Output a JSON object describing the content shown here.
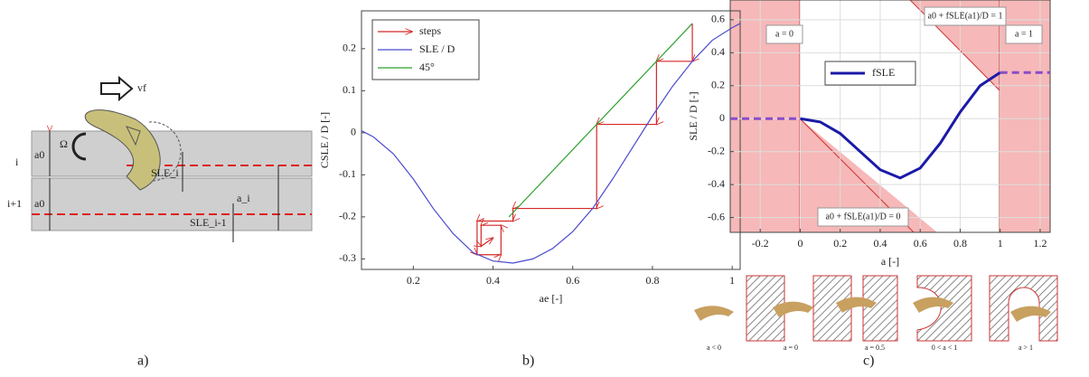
{
  "captions": [
    "a)",
    "b)",
    "c)"
  ],
  "panel_a": {
    "labels": [
      "vf",
      "Ω",
      "i",
      "a0",
      "i+1",
      "a0",
      "SLE_i",
      "SLE_i-1",
      "a_i"
    ]
  },
  "chart_data": [
    {
      "type": "line",
      "xlabel": "ae [-]",
      "ylabel": "CSLE / D [-]",
      "xlim": [
        0.07,
        1.02
      ],
      "ylim": [
        -0.325,
        0.29
      ],
      "xticks": [
        0.2,
        0.4,
        0.6,
        0.8,
        1
      ],
      "yticks": [
        -0.3,
        -0.2,
        -0.1,
        0,
        0.1,
        0.2
      ],
      "grid": false,
      "legend": "upper left",
      "series": [
        {
          "name": "steps",
          "color": "#d62728",
          "arrows": true,
          "x": [
            0.9,
            0.9,
            0.81,
            0.81,
            0.66,
            0.66,
            0.45,
            0.45,
            0.36,
            0.36,
            0.42,
            0.42,
            0.37,
            0.37,
            0.4
          ],
          "values": [
            0.26,
            0.17,
            0.17,
            0.02,
            0.02,
            -0.18,
            -0.18,
            -0.21,
            -0.21,
            -0.29,
            -0.29,
            -0.22,
            -0.22,
            -0.27,
            -0.25
          ]
        },
        {
          "name": "SLE / D",
          "color": "#4a4ad0",
          "x": [
            0.07,
            0.1,
            0.15,
            0.2,
            0.25,
            0.3,
            0.35,
            0.4,
            0.45,
            0.5,
            0.55,
            0.6,
            0.65,
            0.7,
            0.75,
            0.8,
            0.85,
            0.9,
            0.95,
            1.0,
            1.02
          ],
          "values": [
            0.005,
            -0.01,
            -0.05,
            -0.11,
            -0.18,
            -0.24,
            -0.285,
            -0.305,
            -0.31,
            -0.3,
            -0.275,
            -0.235,
            -0.18,
            -0.11,
            -0.035,
            0.04,
            0.11,
            0.17,
            0.22,
            0.25,
            0.26
          ]
        },
        {
          "name": "45°",
          "color": "#2ca02c",
          "x": [
            0.44,
            0.9
          ],
          "values": [
            -0.2,
            0.26
          ]
        }
      ]
    },
    {
      "type": "line",
      "xlabel": "a [-]",
      "ylabel": "SLE / D [-]",
      "xlim": [
        -0.35,
        1.25
      ],
      "ylim": [
        -0.69,
        0.72
      ],
      "xticks": [
        -0.2,
        0,
        0.2,
        0.4,
        0.6,
        0.8,
        1,
        1.2
      ],
      "yticks": [
        -0.6,
        -0.4,
        -0.2,
        0,
        0.2,
        0.4,
        0.6
      ],
      "grid": true,
      "legend": "upper left",
      "annotations": [
        "a = 0",
        "a = 1",
        "a0 + fSLE(a1)/D = 1",
        "a0 + fSLE(a1)/D = 0"
      ],
      "cases": [
        "a < 0",
        "a = 0",
        "a = 0.5",
        "0 < a < 1",
        "a > 1"
      ],
      "series": [
        {
          "name": "fSLE",
          "color": "#1a1aa8",
          "x": [
            0,
            0.1,
            0.2,
            0.3,
            0.4,
            0.5,
            0.6,
            0.7,
            0.8,
            0.9,
            1
          ],
          "values": [
            0,
            -0.02,
            -0.09,
            -0.2,
            -0.31,
            -0.36,
            -0.3,
            -0.15,
            0.04,
            0.2,
            0.28
          ]
        },
        {
          "color": "#8a4cc8",
          "dashed": true,
          "x": [
            -0.35,
            0
          ],
          "values": [
            0,
            0
          ]
        },
        {
          "color": "#8a4cc8",
          "dashed": true,
          "x": [
            1,
            1.25
          ],
          "values": [
            0.28,
            0.28
          ]
        }
      ]
    }
  ]
}
